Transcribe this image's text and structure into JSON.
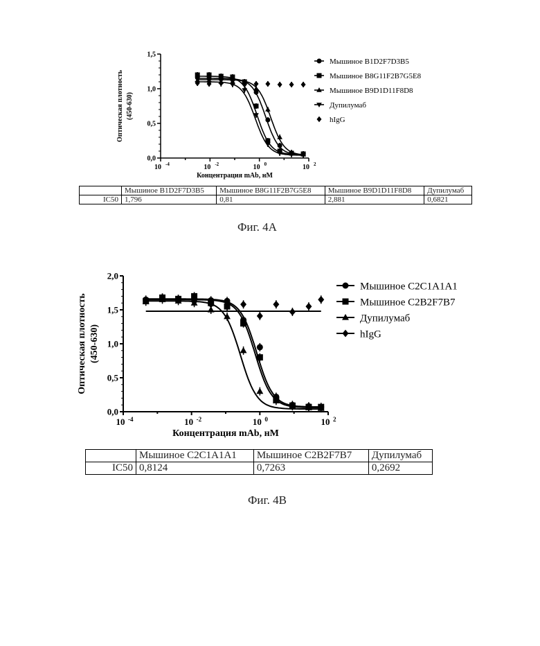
{
  "figures": [
    {
      "caption": "Фиг. 4A",
      "chart_data": {
        "type": "scatter",
        "title": "",
        "xlabel": "Концентрация mAb, нМ",
        "ylabel_line1": "Оптическая плотность",
        "ylabel_line2": "(450-630)",
        "xscale": "log",
        "xlim": [
          0.0001,
          100
        ],
        "ylim": [
          0,
          1.5
        ],
        "x_tick_base": "10",
        "x_tick_exponents": [
          "-4",
          "-2",
          "0",
          "2"
        ],
        "y_tick_labels": [
          "0,0",
          "0,5",
          "1,0",
          "1,5"
        ],
        "legend_position": "right",
        "series": [
          {
            "name": "Мышиное B1D2F7D3B5",
            "marker": "circle",
            "fit": true,
            "ic50": 1.796,
            "top": 1.15,
            "bottom": 0.04,
            "hill": 1.6,
            "x": [
              0.0031,
              0.0092,
              0.028,
              0.082,
              0.25,
              0.74,
              2.2,
              6.7,
              20,
              60
            ],
            "y": [
              1.16,
              1.15,
              1.14,
              1.13,
              1.1,
              0.95,
              0.55,
              0.18,
              0.07,
              0.06
            ]
          },
          {
            "name": "Мышиное B8G11F2B7G5E8",
            "marker": "square",
            "fit": true,
            "ic50": 0.81,
            "top": 1.18,
            "bottom": 0.05,
            "hill": 1.6,
            "x": [
              0.0031,
              0.0092,
              0.028,
              0.082,
              0.25,
              0.74,
              2.2,
              6.7,
              20,
              60
            ],
            "y": [
              1.2,
              1.2,
              1.18,
              1.17,
              1.1,
              0.75,
              0.25,
              0.1,
              0.07,
              0.06
            ]
          },
          {
            "name": "Мышиное B9D1D11F8D8",
            "marker": "triangle-up",
            "fit": true,
            "ic50": 2.881,
            "top": 1.13,
            "bottom": 0.04,
            "hill": 1.6,
            "x": [
              0.0031,
              0.0092,
              0.028,
              0.082,
              0.25,
              0.74,
              2.2,
              6.7,
              20,
              60
            ],
            "y": [
              1.12,
              1.12,
              1.1,
              1.1,
              1.09,
              1.0,
              0.7,
              0.3,
              0.08,
              0.05
            ]
          },
          {
            "name": "Дупилумаб",
            "marker": "triangle-down",
            "fit": true,
            "ic50": 0.6821,
            "top": 1.1,
            "bottom": 0.04,
            "hill": 1.6,
            "x": [
              0.0031,
              0.0092,
              0.028,
              0.082,
              0.25,
              0.74,
              2.2,
              6.7,
              20,
              60
            ],
            "y": [
              1.08,
              1.08,
              1.07,
              1.06,
              0.98,
              0.62,
              0.2,
              0.07,
              0.05,
              0.04
            ]
          },
          {
            "name": "hIgG",
            "marker": "diamond",
            "fit": false,
            "x": [
              0.0031,
              0.0092,
              0.028,
              0.082,
              0.25,
              0.74,
              2.2,
              6.7,
              20,
              60
            ],
            "y": [
              1.08,
              1.07,
              1.08,
              1.07,
              1.06,
              1.07,
              1.07,
              1.06,
              1.06,
              1.06
            ]
          }
        ]
      },
      "table": {
        "header": [
          "",
          "Мышиное B1D2F7D3B5",
          "Мышиное B8G11F2B7G5E8",
          "Мышиное B9D1D11F8D8",
          "Дупилумаб"
        ],
        "row": [
          "IC50",
          "1,796",
          "0,81",
          "2,881",
          "0,6821"
        ]
      }
    },
    {
      "caption": "Фиг. 4В",
      "chart_data": {
        "type": "scatter",
        "title": "",
        "xlabel": "Концентрация mAb, нМ",
        "ylabel_line1": "Оптическая плотность",
        "ylabel_line2": "(450-630)",
        "xscale": "log",
        "xlim": [
          0.0001,
          100
        ],
        "ylim": [
          0,
          2
        ],
        "x_tick_base": "10",
        "x_tick_exponents": [
          "-4",
          "-2",
          "0",
          "2"
        ],
        "y_tick_labels": [
          "0,0",
          "0,5",
          "1,0",
          "1,5",
          "2,0"
        ],
        "legend_position": "top-right",
        "series": [
          {
            "name": "Мышиное C2C1A1A1",
            "marker": "circle",
            "fit": true,
            "ic50": 0.8124,
            "top": 1.66,
            "bottom": 0.07,
            "hill": 1.8,
            "x": [
              0.00046,
              0.0014,
              0.0041,
              0.012,
              0.037,
              0.11,
              0.33,
              1.0,
              3.0,
              9.0,
              27,
              62
            ],
            "y": [
              1.65,
              1.67,
              1.66,
              1.65,
              1.64,
              1.63,
              1.35,
              0.95,
              0.22,
              0.1,
              0.08,
              0.07
            ]
          },
          {
            "name": "Мышиное C2B2F7B7",
            "marker": "square",
            "fit": true,
            "ic50": 0.7263,
            "top": 1.65,
            "bottom": 0.06,
            "hill": 1.8,
            "x": [
              0.00046,
              0.0014,
              0.0041,
              0.012,
              0.037,
              0.11,
              0.33,
              1.0,
              3.0,
              9.0,
              27,
              62
            ],
            "y": [
              1.63,
              1.68,
              1.66,
              1.7,
              1.6,
              1.55,
              1.3,
              0.8,
              0.18,
              0.09,
              0.07,
              0.07
            ]
          },
          {
            "name": "Дупилумаб",
            "marker": "triangle-up",
            "fit": true,
            "ic50": 0.2692,
            "top": 1.63,
            "bottom": 0.04,
            "hill": 1.8,
            "x": [
              0.00046,
              0.0014,
              0.0041,
              0.012,
              0.037,
              0.11,
              0.33,
              1.0,
              3.0,
              9.0,
              27,
              62
            ],
            "y": [
              1.62,
              1.65,
              1.63,
              1.6,
              1.5,
              1.4,
              0.9,
              0.3,
              0.16,
              0.08,
              0.06,
              0.05
            ]
          },
          {
            "name": "hIgG",
            "marker": "diamond",
            "fit": false,
            "level": 1.48,
            "x": [
              0.00046,
              0.0014,
              0.0041,
              0.012,
              0.037,
              0.11,
              0.33,
              1.0,
              3.0,
              9.0,
              27,
              62
            ],
            "y": [
              1.63,
              1.68,
              1.66,
              1.62,
              1.58,
              1.55,
              1.58,
              1.41,
              1.58,
              1.47,
              1.55,
              1.65
            ]
          }
        ]
      },
      "table": {
        "header": [
          "",
          "Мышиное C2C1A1A1",
          "Мышиное C2B2F7B7",
          "Дупилумаб"
        ],
        "row": [
          "IC50",
          "0,8124",
          "0,7263",
          "0,2692"
        ]
      }
    }
  ]
}
